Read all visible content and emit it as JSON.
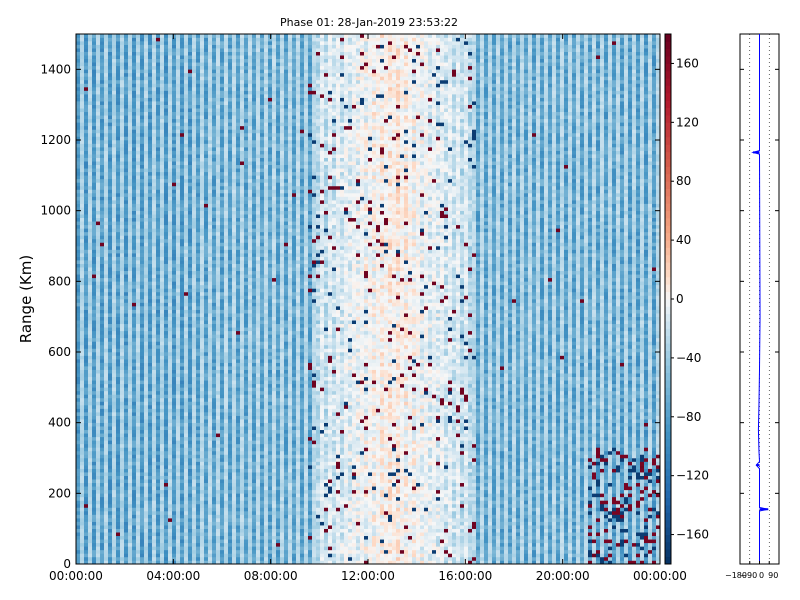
{
  "chart_data": [
    {
      "type": "heatmap",
      "title": "Phase 01: 28-Jan-2019 23:53:22",
      "xlabel": "",
      "ylabel": "Range (Km)",
      "x_ticks": [
        "00:00:00",
        "04:00:00",
        "08:00:00",
        "12:00:00",
        "16:00:00",
        "20:00:00",
        "00:00:00"
      ],
      "x_range_hours": [
        0,
        24
      ],
      "y_ticks": [
        0,
        200,
        400,
        600,
        800,
        1000,
        1200,
        1400
      ],
      "ylim": [
        0,
        1500
      ],
      "colorbar": {
        "colormap": "RdBu_r",
        "range": [
          -180,
          180
        ],
        "ticks": [
          -160,
          -120,
          -80,
          -40,
          0,
          40,
          80,
          120,
          160
        ]
      },
      "grid": false
    },
    {
      "type": "line",
      "xlabel": "",
      "ylabel": "",
      "x_ticks": [
        "-180",
        "-90",
        "0",
        "90"
      ],
      "xlim": [
        -180,
        180
      ],
      "ylim": [
        0,
        1500
      ],
      "grid": "vertical dotted",
      "series": [
        {
          "color": "#0000ff",
          "points": [
            [
              0,
              0
            ],
            [
              0,
              150
            ],
            [
              80,
              155
            ],
            [
              0,
              160
            ],
            [
              0,
              270
            ],
            [
              -30,
              280
            ],
            [
              0,
              290
            ],
            [
              -5,
              320
            ],
            [
              -10,
              380
            ],
            [
              -5,
              450
            ],
            [
              0,
              550
            ],
            [
              5,
              700
            ],
            [
              0,
              1160
            ],
            [
              -60,
              1165
            ],
            [
              0,
              1170
            ],
            [
              0,
              1500
            ]
          ]
        }
      ]
    }
  ],
  "colors": {
    "series": "#0000ff",
    "axis": "#000000"
  }
}
